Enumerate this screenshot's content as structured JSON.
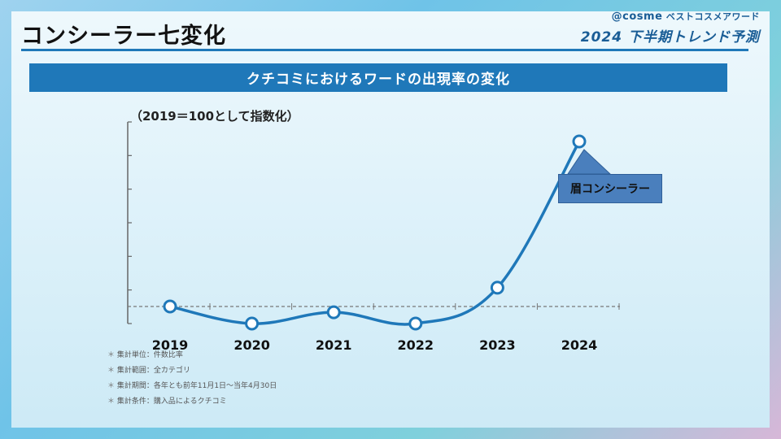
{
  "header": {
    "title": "コンシーラー七変化",
    "brand_cosme": "@cosme",
    "brand_award": "ベストコスメアワード",
    "brand_sub": "2024 下半期トレンド予測"
  },
  "banner": {
    "text": "クチコミにおけるワードの出現率の変化"
  },
  "colors": {
    "accent": "#1f78b9",
    "line": "#1f78b9",
    "callout": "#4a7fbd"
  },
  "chart_data": {
    "type": "line",
    "index_note": "（2019＝100として指数化）",
    "categories": [
      "2019",
      "2020",
      "2021",
      "2022",
      "2023",
      "2024"
    ],
    "series": [
      {
        "name": "眉コンシーラー",
        "values": [
          100,
          50,
          83,
          50,
          155,
          583
        ]
      }
    ],
    "baseline": 100,
    "ylim": [
      50,
      640
    ],
    "grid": false,
    "annotation": {
      "label": "眉コンシーラー",
      "category": "2024"
    }
  },
  "notes": [
    "集計単位：件数比率",
    "集計範囲：全カテゴリ",
    "集計期間：各年とも前年11月1日〜当年4月30日",
    "集計条件：購入品によるクチコミ"
  ]
}
